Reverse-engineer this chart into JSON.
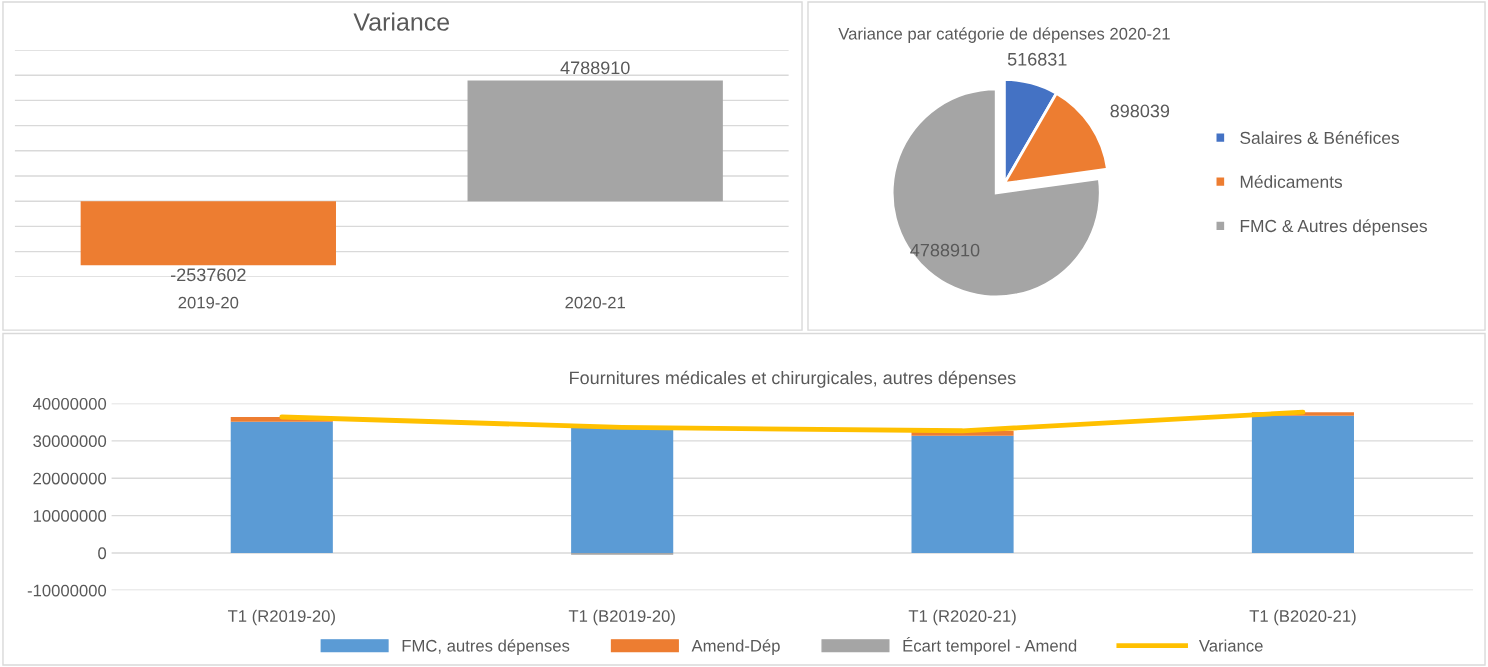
{
  "chart_data": [
    {
      "type": "bar",
      "title": "Variance",
      "categories": [
        "2019-20",
        "2020-21"
      ],
      "values": [
        -2537602,
        4788910
      ],
      "colors": [
        "#ed7d31",
        "#a5a5a5"
      ],
      "ylim": [
        -3000000,
        6000000
      ],
      "yticks": [
        {
          "value": -3000000,
          "label": null
        },
        {
          "value": -2000000,
          "label": null
        },
        {
          "value": -1000000,
          "label": null
        },
        {
          "value": 0,
          "label": null
        },
        {
          "value": 1000000,
          "label": null
        },
        {
          "value": 2000000,
          "label": null
        },
        {
          "value": 3000000,
          "label": null
        },
        {
          "value": 4000000,
          "label": null
        },
        {
          "value": 5000000,
          "label": null
        },
        {
          "value": 6000000,
          "label": null
        }
      ],
      "grid": "y",
      "data_labels": true
    },
    {
      "type": "pie",
      "title": "Variance par catégorie de dépenses 2020-21",
      "categories": [
        "Salaires & Bénéfices",
        "Médicaments",
        "FMC & Autres dépenses"
      ],
      "values": [
        516831,
        898039,
        4788910
      ],
      "colors": [
        "#4472c4",
        "#ed7d31",
        "#a5a5a5"
      ],
      "data_labels": true,
      "legend": "right"
    },
    {
      "type": "bar",
      "stacked": true,
      "title": "Fournitures médicales et chirurgicales, autres dépenses",
      "categories": [
        "T1 (R2019-20)",
        "T1 (B2019-20)",
        "T1 (R2020-21)",
        "T1 (B2020-21)"
      ],
      "series": [
        {
          "name": "FMC, autres dépenses",
          "color": "#5b9bd5",
          "values": [
            35100000,
            33500000,
            31400000,
            36700000
          ]
        },
        {
          "name": "Amend-Dép",
          "color": "#ed7d31",
          "values": [
            1300000,
            0,
            1300000,
            1000000
          ]
        },
        {
          "name": "Écart temporel - Amend",
          "color": "#a5a5a5",
          "values": [
            0,
            -500000,
            0,
            0
          ]
        },
        {
          "name": "Variance",
          "color": "#ffc000",
          "type": "line",
          "values": [
            36400000,
            33600000,
            32700000,
            37700000
          ]
        }
      ],
      "ylim": [
        -10000000,
        40000000
      ],
      "yticks": [
        -10000000,
        0,
        10000000,
        20000000,
        30000000,
        40000000
      ],
      "grid": "y",
      "legend": "bottom"
    }
  ]
}
